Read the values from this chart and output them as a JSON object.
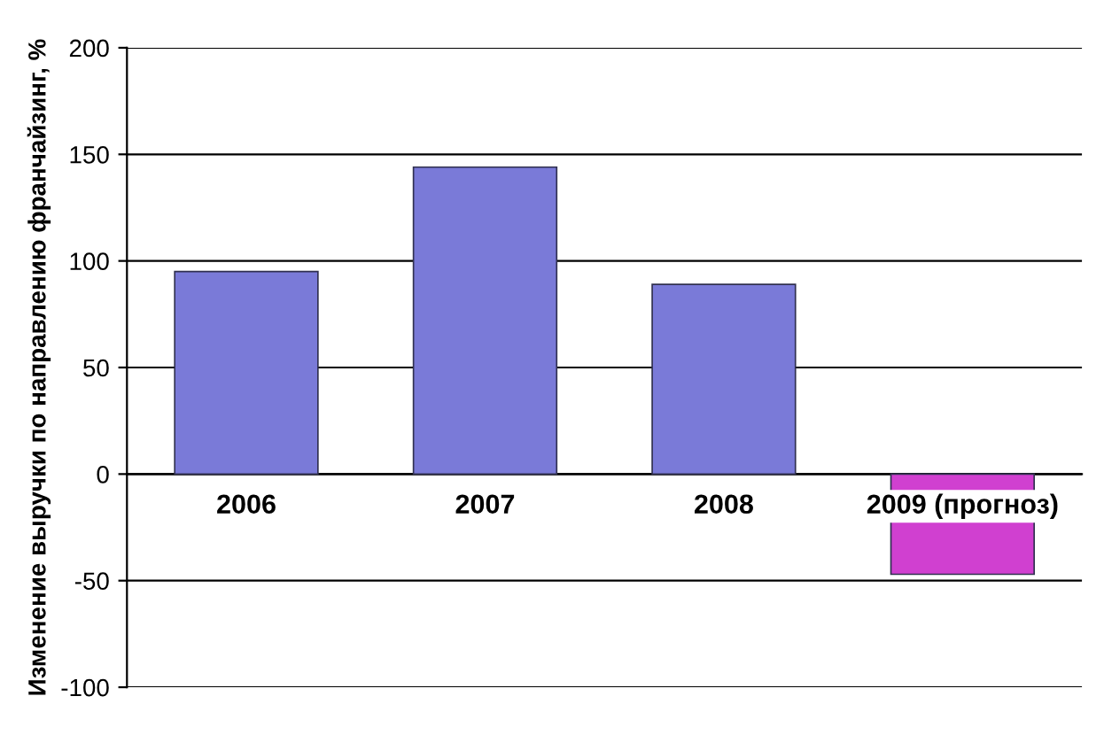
{
  "chart_data": {
    "type": "bar",
    "ylabel": "Изменение выручки по направлению франчайзинг, %",
    "categories": [
      "2006",
      "2007",
      "2008",
      "2009 (прогноз)"
    ],
    "values": [
      95,
      144,
      89,
      -47
    ],
    "colors": [
      "#7a7ad8",
      "#7a7ad8",
      "#7a7ad8",
      "#d040d0"
    ],
    "ylim": [
      -100,
      200
    ],
    "yticks": [
      -100,
      -50,
      0,
      50,
      100,
      150,
      200
    ],
    "grid": "y"
  }
}
